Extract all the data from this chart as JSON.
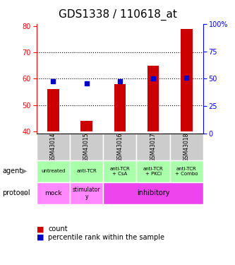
{
  "title": "GDS1338 / 110618_at",
  "samples": [
    "GSM43014",
    "GSM43015",
    "GSM43016",
    "GSM43017",
    "GSM43018"
  ],
  "count_values": [
    56,
    44,
    58,
    65,
    79
  ],
  "percentile_values": [
    48,
    46,
    48,
    50,
    51
  ],
  "ylim_left": [
    39,
    81
  ],
  "yticks_left": [
    40,
    50,
    60,
    70,
    80
  ],
  "ylim_right": [
    0,
    100
  ],
  "yticks_right": [
    0,
    25,
    50,
    75,
    100
  ],
  "bar_color": "#cc0000",
  "dot_color": "#0000cc",
  "bar_bottom": 40,
  "agent_labels": [
    "untreated",
    "anti-TCR",
    "anti-TCR\n+ CsA",
    "anti-TCR\n+ PKCi",
    "anti-TCR\n+ Combo"
  ],
  "agent_bg": "#aaffaa",
  "sample_bg": "#cccccc",
  "legend_count_color": "#cc0000",
  "legend_pct_color": "#0000cc",
  "title_fontsize": 11,
  "tick_fontsize": 7
}
